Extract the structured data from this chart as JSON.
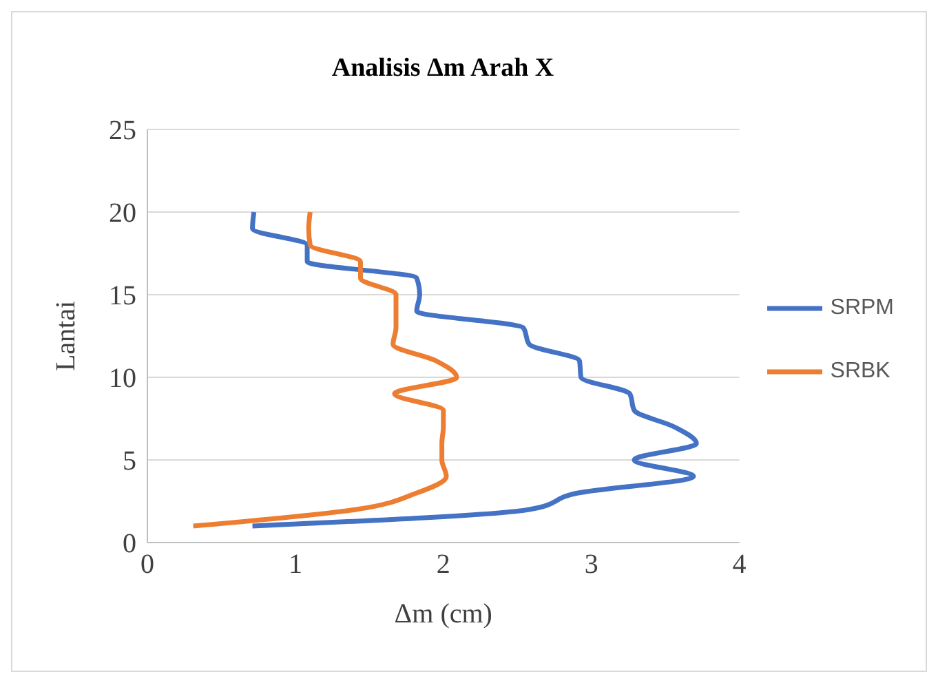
{
  "chart_data": {
    "type": "line",
    "title": "Analisis Δm Arah X",
    "xlabel": "Δm (cm)",
    "ylabel": "Lantai",
    "xlim": [
      0,
      4
    ],
    "xticks": [
      0,
      1,
      2,
      3,
      4
    ],
    "ylim": [
      0,
      25
    ],
    "yticks": [
      0,
      5,
      10,
      15,
      20,
      25
    ],
    "grid": "y",
    "legend": "right",
    "marker": "none",
    "line_style": "solid",
    "series": [
      {
        "name": "SRPM",
        "color": "#4472c4",
        "x": [
          0.71,
          2.58,
          2.91,
          3.69,
          3.29,
          3.71,
          3.56,
          3.29,
          3.26,
          2.93,
          2.92,
          2.58,
          2.54,
          1.82,
          1.84,
          1.82,
          1.08,
          1.08,
          0.71,
          0.72
        ],
        "values": [
          1,
          2,
          3,
          4,
          5,
          6,
          7,
          8,
          9,
          10,
          11,
          12,
          13,
          14,
          15,
          16,
          17,
          18,
          19,
          20
        ]
      },
      {
        "name": "SRBK",
        "color": "#ed7d31",
        "x": [
          0.31,
          1.41,
          1.82,
          2.02,
          1.99,
          1.99,
          2.0,
          2.0,
          1.67,
          2.09,
          1.95,
          1.66,
          1.68,
          1.68,
          1.68,
          1.44,
          1.44,
          1.1,
          1.09,
          1.1
        ],
        "values": [
          1,
          2,
          3,
          4,
          5,
          6,
          7,
          8,
          9,
          10,
          11,
          12,
          13,
          14,
          15,
          16,
          17,
          18,
          19,
          20
        ]
      }
    ]
  }
}
